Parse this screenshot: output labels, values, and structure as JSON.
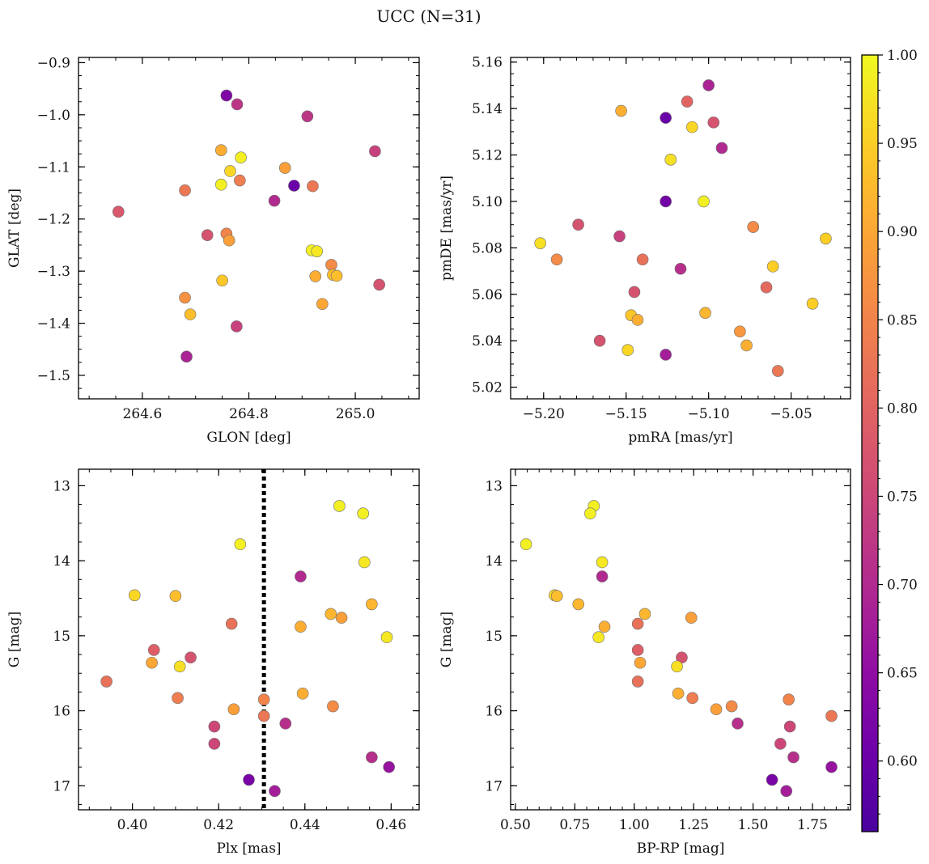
{
  "suptitle": "UCC (N=31)",
  "colorbar": {
    "cmap": "plasma",
    "range": [
      0.56,
      1.0
    ],
    "ticks": [
      0.6,
      0.65,
      0.7,
      0.75,
      0.8,
      0.85,
      0.9,
      0.95,
      1.0
    ],
    "tick_labels": [
      "0.60",
      "0.65",
      "0.70",
      "0.75",
      "0.80",
      "0.85",
      "0.90",
      "0.95",
      "1.00"
    ]
  },
  "chart_data": [
    {
      "type": "scatter",
      "xlabel": "GLON [deg]",
      "ylabel": "GLAT [deg]",
      "xlim": [
        264.48,
        265.12
      ],
      "ylim": [
        -1.545,
        -0.89
      ],
      "y_inverted": false,
      "xticks": [
        264.6,
        264.8,
        265.0
      ],
      "xtick_labels": [
        "264.6",
        "264.8",
        "265.0"
      ],
      "yticks": [
        -0.9,
        -1.0,
        -1.1,
        -1.2,
        -1.3,
        -1.4,
        -1.5
      ],
      "ytick_labels": [
        "−0.9",
        "−1.0",
        "−1.1",
        "−1.2",
        "−1.3",
        "−1.4",
        "−1.5"
      ],
      "x_minor_step": 0.05,
      "y_minor_step": 0.025,
      "points": [
        {
          "x": 264.758,
          "y": -0.963,
          "c": 0.63
        },
        {
          "x": 264.778,
          "y": -0.98,
          "c": 0.72
        },
        {
          "x": 264.91,
          "y": -1.003,
          "c": 0.72
        },
        {
          "x": 265.037,
          "y": -1.07,
          "c": 0.74
        },
        {
          "x": 264.748,
          "y": -1.068,
          "c": 0.91
        },
        {
          "x": 264.785,
          "y": -1.082,
          "c": 0.99
        },
        {
          "x": 264.868,
          "y": -1.102,
          "c": 0.89
        },
        {
          "x": 264.765,
          "y": -1.108,
          "c": 0.96
        },
        {
          "x": 264.783,
          "y": -1.126,
          "c": 0.84
        },
        {
          "x": 264.748,
          "y": -1.134,
          "c": 0.99
        },
        {
          "x": 264.885,
          "y": -1.136,
          "c": 0.6
        },
        {
          "x": 264.92,
          "y": -1.137,
          "c": 0.83
        },
        {
          "x": 264.68,
          "y": -1.145,
          "c": 0.83
        },
        {
          "x": 264.848,
          "y": -1.165,
          "c": 0.7
        },
        {
          "x": 264.555,
          "y": -1.186,
          "c": 0.78
        },
        {
          "x": 264.722,
          "y": -1.231,
          "c": 0.77
        },
        {
          "x": 264.758,
          "y": -1.228,
          "c": 0.85
        },
        {
          "x": 264.763,
          "y": -1.241,
          "c": 0.89
        },
        {
          "x": 264.918,
          "y": -1.26,
          "c": 0.99
        },
        {
          "x": 264.928,
          "y": -1.262,
          "c": 0.98
        },
        {
          "x": 264.955,
          "y": -1.288,
          "c": 0.86
        },
        {
          "x": 264.925,
          "y": -1.31,
          "c": 0.91
        },
        {
          "x": 264.958,
          "y": -1.307,
          "c": 0.93
        },
        {
          "x": 264.965,
          "y": -1.309,
          "c": 0.93
        },
        {
          "x": 264.75,
          "y": -1.318,
          "c": 0.94
        },
        {
          "x": 265.045,
          "y": -1.326,
          "c": 0.77
        },
        {
          "x": 264.68,
          "y": -1.351,
          "c": 0.87
        },
        {
          "x": 264.938,
          "y": -1.363,
          "c": 0.9
        },
        {
          "x": 264.69,
          "y": -1.383,
          "c": 0.93
        },
        {
          "x": 264.777,
          "y": -1.406,
          "c": 0.74
        },
        {
          "x": 264.683,
          "y": -1.464,
          "c": 0.69
        }
      ]
    },
    {
      "type": "scatter",
      "xlabel": "pmRA [mas/yr]",
      "ylabel": "pmDE [mas/yr]",
      "xlim": [
        -5.22,
        -5.014
      ],
      "ylim": [
        5.015,
        5.162
      ],
      "y_inverted": false,
      "xticks": [
        -5.2,
        -5.15,
        -5.1,
        -5.05
      ],
      "xtick_labels": [
        "−5.20",
        "−5.15",
        "−5.10",
        "−5.05"
      ],
      "yticks": [
        5.02,
        5.04,
        5.06,
        5.08,
        5.1,
        5.12,
        5.14,
        5.16
      ],
      "ytick_labels": [
        "5.02",
        "5.04",
        "5.06",
        "5.08",
        "5.10",
        "5.12",
        "5.14",
        "5.16"
      ],
      "x_minor_step": 0.01,
      "y_minor_step": 0.005,
      "points": [
        {
          "x": -5.1,
          "y": 5.15,
          "c": 0.69
        },
        {
          "x": -5.113,
          "y": 5.143,
          "c": 0.8
        },
        {
          "x": -5.153,
          "y": 5.139,
          "c": 0.91
        },
        {
          "x": -5.126,
          "y": 5.136,
          "c": 0.6
        },
        {
          "x": -5.097,
          "y": 5.134,
          "c": 0.77
        },
        {
          "x": -5.11,
          "y": 5.132,
          "c": 0.96
        },
        {
          "x": -5.092,
          "y": 5.123,
          "c": 0.7
        },
        {
          "x": -5.123,
          "y": 5.118,
          "c": 0.97
        },
        {
          "x": -5.126,
          "y": 5.1,
          "c": 0.61
        },
        {
          "x": -5.103,
          "y": 5.1,
          "c": 0.99
        },
        {
          "x": -5.179,
          "y": 5.09,
          "c": 0.77
        },
        {
          "x": -5.073,
          "y": 5.089,
          "c": 0.86
        },
        {
          "x": -5.154,
          "y": 5.085,
          "c": 0.74
        },
        {
          "x": -5.029,
          "y": 5.084,
          "c": 0.95
        },
        {
          "x": -5.202,
          "y": 5.082,
          "c": 0.97
        },
        {
          "x": -5.192,
          "y": 5.075,
          "c": 0.86
        },
        {
          "x": -5.14,
          "y": 5.075,
          "c": 0.82
        },
        {
          "x": -5.061,
          "y": 5.072,
          "c": 0.95
        },
        {
          "x": -5.117,
          "y": 5.071,
          "c": 0.71
        },
        {
          "x": -5.145,
          "y": 5.061,
          "c": 0.77
        },
        {
          "x": -5.065,
          "y": 5.063,
          "c": 0.81
        },
        {
          "x": -5.037,
          "y": 5.056,
          "c": 0.95
        },
        {
          "x": -5.102,
          "y": 5.052,
          "c": 0.92
        },
        {
          "x": -5.147,
          "y": 5.051,
          "c": 0.94
        },
        {
          "x": -5.143,
          "y": 5.049,
          "c": 0.91
        },
        {
          "x": -5.081,
          "y": 5.044,
          "c": 0.88
        },
        {
          "x": -5.166,
          "y": 5.04,
          "c": 0.77
        },
        {
          "x": -5.077,
          "y": 5.038,
          "c": 0.91
        },
        {
          "x": -5.149,
          "y": 5.036,
          "c": 0.96
        },
        {
          "x": -5.126,
          "y": 5.034,
          "c": 0.68
        },
        {
          "x": -5.058,
          "y": 5.027,
          "c": 0.83
        }
      ]
    },
    {
      "type": "scatter",
      "xlabel": "Plx [mas]",
      "ylabel": "G [mag]",
      "xlim": [
        0.3875,
        0.4665
      ],
      "ylim": [
        17.32,
        12.78
      ],
      "y_inverted": true,
      "vline": {
        "x": 0.4305,
        "style": "dotted",
        "color": "#000000"
      },
      "xticks": [
        0.4,
        0.42,
        0.44,
        0.46
      ],
      "xtick_labels": [
        "0.40",
        "0.42",
        "0.44",
        "0.46"
      ],
      "yticks": [
        13,
        14,
        15,
        16,
        17
      ],
      "ytick_labels": [
        "13",
        "14",
        "15",
        "16",
        "17"
      ],
      "x_minor_step": 0.005,
      "y_minor_step": 0.25,
      "points": [
        {
          "x": 0.448,
          "y": 13.27,
          "c": 0.99
        },
        {
          "x": 0.4535,
          "y": 13.37,
          "c": 0.99
        },
        {
          "x": 0.425,
          "y": 13.78,
          "c": 0.99
        },
        {
          "x": 0.4538,
          "y": 14.02,
          "c": 0.98
        },
        {
          "x": 0.439,
          "y": 14.21,
          "c": 0.7
        },
        {
          "x": 0.4005,
          "y": 14.46,
          "c": 0.96
        },
        {
          "x": 0.41,
          "y": 14.47,
          "c": 0.93
        },
        {
          "x": 0.4555,
          "y": 14.58,
          "c": 0.92
        },
        {
          "x": 0.446,
          "y": 14.71,
          "c": 0.92
        },
        {
          "x": 0.4485,
          "y": 14.76,
          "c": 0.89
        },
        {
          "x": 0.423,
          "y": 14.84,
          "c": 0.82
        },
        {
          "x": 0.439,
          "y": 14.88,
          "c": 0.91
        },
        {
          "x": 0.459,
          "y": 15.02,
          "c": 0.98
        },
        {
          "x": 0.405,
          "y": 15.19,
          "c": 0.79
        },
        {
          "x": 0.4135,
          "y": 15.29,
          "c": 0.77
        },
        {
          "x": 0.4045,
          "y": 15.36,
          "c": 0.9
        },
        {
          "x": 0.411,
          "y": 15.41,
          "c": 0.97
        },
        {
          "x": 0.394,
          "y": 15.61,
          "c": 0.82
        },
        {
          "x": 0.4395,
          "y": 15.77,
          "c": 0.91
        },
        {
          "x": 0.4105,
          "y": 15.83,
          "c": 0.84
        },
        {
          "x": 0.4305,
          "y": 15.85,
          "c": 0.85
        },
        {
          "x": 0.4465,
          "y": 15.94,
          "c": 0.86
        },
        {
          "x": 0.4235,
          "y": 15.98,
          "c": 0.89
        },
        {
          "x": 0.4305,
          "y": 16.07,
          "c": 0.83
        },
        {
          "x": 0.4355,
          "y": 16.17,
          "c": 0.71
        },
        {
          "x": 0.419,
          "y": 16.21,
          "c": 0.75
        },
        {
          "x": 0.419,
          "y": 16.44,
          "c": 0.75
        },
        {
          "x": 0.4555,
          "y": 16.62,
          "c": 0.71
        },
        {
          "x": 0.4595,
          "y": 16.75,
          "c": 0.66
        },
        {
          "x": 0.427,
          "y": 16.92,
          "c": 0.62
        },
        {
          "x": 0.433,
          "y": 17.07,
          "c": 0.68
        }
      ]
    },
    {
      "type": "scatter",
      "xlabel": "BP-RP [mag]",
      "ylabel": "G [mag]",
      "xlim": [
        0.48,
        1.91
      ],
      "ylim": [
        17.32,
        12.78
      ],
      "y_inverted": true,
      "xticks": [
        0.5,
        0.75,
        1.0,
        1.25,
        1.5,
        1.75
      ],
      "xtick_labels": [
        "0.50",
        "0.75",
        "1.00",
        "1.25",
        "1.50",
        "1.75"
      ],
      "yticks": [
        13,
        14,
        15,
        16,
        17
      ],
      "ytick_labels": [
        "13",
        "14",
        "15",
        "16",
        "17"
      ],
      "x_minor_step": 0.05,
      "y_minor_step": 0.25,
      "points": [
        {
          "x": 0.83,
          "y": 13.27,
          "c": 0.99
        },
        {
          "x": 0.815,
          "y": 13.37,
          "c": 0.99
        },
        {
          "x": 0.545,
          "y": 13.78,
          "c": 0.99
        },
        {
          "x": 0.865,
          "y": 14.02,
          "c": 0.98
        },
        {
          "x": 0.865,
          "y": 14.21,
          "c": 0.7
        },
        {
          "x": 0.665,
          "y": 14.46,
          "c": 0.96
        },
        {
          "x": 0.675,
          "y": 14.47,
          "c": 0.93
        },
        {
          "x": 0.765,
          "y": 14.58,
          "c": 0.92
        },
        {
          "x": 1.045,
          "y": 14.71,
          "c": 0.92
        },
        {
          "x": 1.24,
          "y": 14.76,
          "c": 0.89
        },
        {
          "x": 1.015,
          "y": 14.84,
          "c": 0.82
        },
        {
          "x": 0.875,
          "y": 14.88,
          "c": 0.91
        },
        {
          "x": 0.85,
          "y": 15.02,
          "c": 0.98
        },
        {
          "x": 1.015,
          "y": 15.19,
          "c": 0.79
        },
        {
          "x": 1.2,
          "y": 15.29,
          "c": 0.77
        },
        {
          "x": 1.025,
          "y": 15.36,
          "c": 0.9
        },
        {
          "x": 1.18,
          "y": 15.41,
          "c": 0.97
        },
        {
          "x": 1.015,
          "y": 15.61,
          "c": 0.82
        },
        {
          "x": 1.185,
          "y": 15.77,
          "c": 0.91
        },
        {
          "x": 1.245,
          "y": 15.83,
          "c": 0.84
        },
        {
          "x": 1.65,
          "y": 15.85,
          "c": 0.85
        },
        {
          "x": 1.41,
          "y": 15.94,
          "c": 0.86
        },
        {
          "x": 1.345,
          "y": 15.98,
          "c": 0.89
        },
        {
          "x": 1.83,
          "y": 16.07,
          "c": 0.83
        },
        {
          "x": 1.435,
          "y": 16.17,
          "c": 0.71
        },
        {
          "x": 1.655,
          "y": 16.21,
          "c": 0.75
        },
        {
          "x": 1.615,
          "y": 16.44,
          "c": 0.75
        },
        {
          "x": 1.67,
          "y": 16.62,
          "c": 0.71
        },
        {
          "x": 1.83,
          "y": 16.75,
          "c": 0.66
        },
        {
          "x": 1.58,
          "y": 16.92,
          "c": 0.62
        },
        {
          "x": 1.64,
          "y": 17.07,
          "c": 0.68
        }
      ]
    }
  ]
}
